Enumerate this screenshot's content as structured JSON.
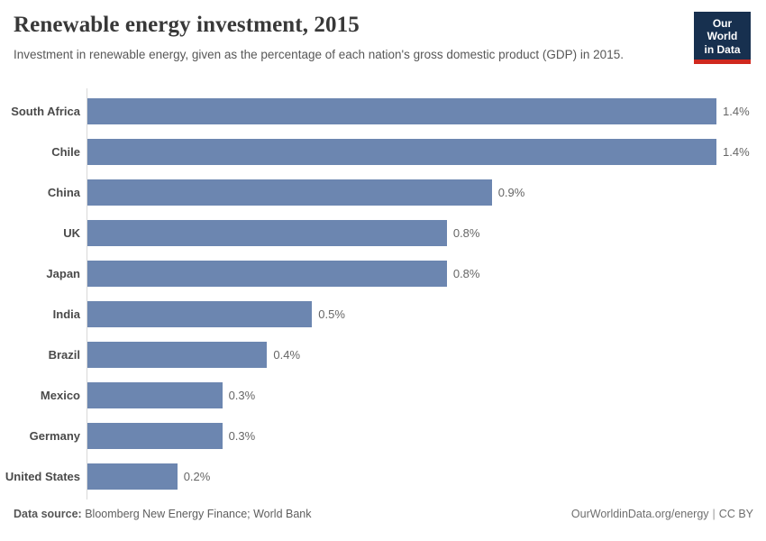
{
  "header": {
    "title": "Renewable energy investment, 2015",
    "subtitle": "Investment in renewable energy, given as the percentage of each nation's gross domestic product (GDP) in 2015.",
    "logo": {
      "line1": "Our World",
      "line2": "in Data"
    }
  },
  "chart_data": {
    "type": "bar",
    "orientation": "horizontal",
    "title": "Renewable energy investment, 2015",
    "xlabel": "",
    "ylabel": "",
    "unit": "% of GDP",
    "grid": false,
    "legend": false,
    "xlim": [
      0,
      1.4
    ],
    "categories": [
      "South Africa",
      "Chile",
      "China",
      "UK",
      "Japan",
      "India",
      "Brazil",
      "Mexico",
      "Germany",
      "United States"
    ],
    "values": [
      1.4,
      1.4,
      0.9,
      0.8,
      0.8,
      0.5,
      0.4,
      0.3,
      0.3,
      0.2
    ],
    "value_labels": [
      "1.4%",
      "1.4%",
      "0.9%",
      "0.8%",
      "0.8%",
      "0.5%",
      "0.4%",
      "0.3%",
      "0.3%",
      "0.2%"
    ]
  },
  "colors": {
    "bar": "#6c86b0",
    "axis_line": "#d9d9d9",
    "logo_navy": "#17304f",
    "logo_red": "#d0281e",
    "title_text": "#383838",
    "category_label": "#4a4a4a",
    "value_label": "#666666"
  },
  "footer": {
    "source_label": "Data source:",
    "source_text": "Bloomberg New Energy Finance; World Bank",
    "link": "OurWorldinData.org/energy",
    "separator": "|",
    "license": "CC BY"
  }
}
